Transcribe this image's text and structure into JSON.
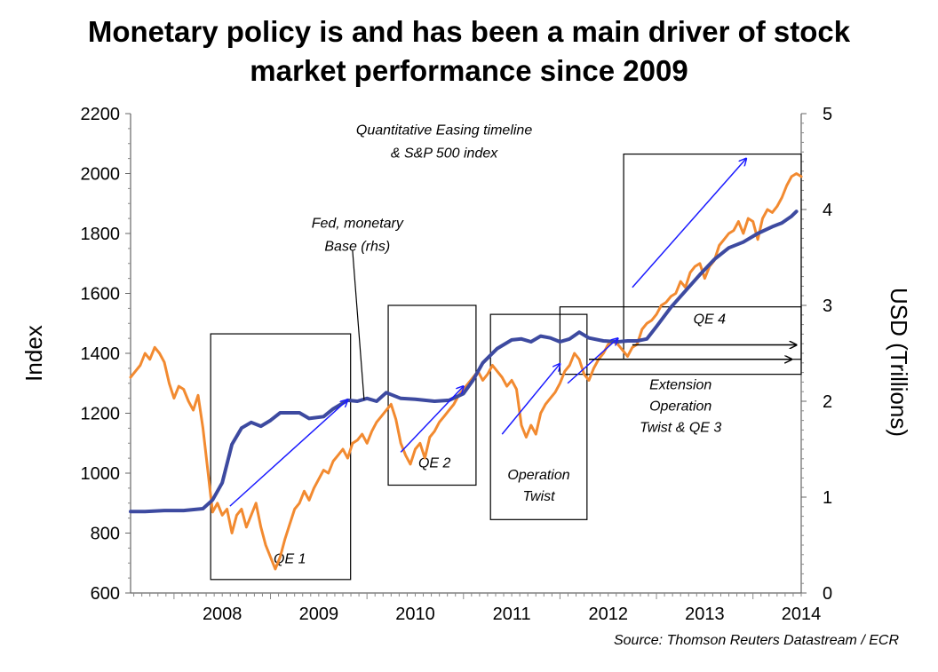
{
  "chart_data": {
    "type": "line",
    "title_lines": [
      "Monetary policy is and has been a main driver of stock",
      "market  performance since 2009"
    ],
    "source": "Source: Thomson Reuters Datastream / ECR",
    "ylabel": "Index",
    "y2label": "USD (Trillions)",
    "ylim": [
      600,
      2200
    ],
    "y2lim": [
      0,
      5
    ],
    "xlim": [
      2007.55,
      2014.5
    ],
    "yticks": [
      "600",
      "800",
      "1000",
      "1200",
      "1400",
      "1600",
      "1800",
      "2000",
      "2200"
    ],
    "y2ticks": [
      "0",
      "1",
      "2",
      "3",
      "4",
      "5"
    ],
    "xticks": [
      {
        "label": "2008",
        "x": 2008.0
      },
      {
        "label": "2009",
        "x": 2009.0
      },
      {
        "label": "2010",
        "x": 2010.0
      },
      {
        "label": "2011",
        "x": 2011.0
      },
      {
        "label": "2012",
        "x": 2012.0
      },
      {
        "label": "2013",
        "x": 2013.0
      },
      {
        "label": "2014",
        "x": 2014.0
      }
    ],
    "series": [
      {
        "axis": "left",
        "color": "#f28a30",
        "points": [
          [
            2007.55,
            1320
          ],
          [
            2007.6,
            1340
          ],
          [
            2007.65,
            1360
          ],
          [
            2007.7,
            1400
          ],
          [
            2007.75,
            1380
          ],
          [
            2007.8,
            1420
          ],
          [
            2007.85,
            1400
          ],
          [
            2007.9,
            1370
          ],
          [
            2007.95,
            1300
          ],
          [
            2008.0,
            1250
          ],
          [
            2008.05,
            1290
          ],
          [
            2008.1,
            1280
          ],
          [
            2008.15,
            1240
          ],
          [
            2008.2,
            1210
          ],
          [
            2008.25,
            1260
          ],
          [
            2008.3,
            1150
          ],
          [
            2008.35,
            1010
          ],
          [
            2008.4,
            870
          ],
          [
            2008.45,
            900
          ],
          [
            2008.5,
            860
          ],
          [
            2008.55,
            880
          ],
          [
            2008.6,
            800
          ],
          [
            2008.65,
            860
          ],
          [
            2008.7,
            880
          ],
          [
            2008.75,
            820
          ],
          [
            2008.8,
            860
          ],
          [
            2008.85,
            900
          ],
          [
            2008.9,
            820
          ],
          [
            2008.95,
            760
          ],
          [
            2009.0,
            720
          ],
          [
            2009.05,
            680
          ],
          [
            2009.1,
            720
          ],
          [
            2009.15,
            780
          ],
          [
            2009.2,
            830
          ],
          [
            2009.25,
            880
          ],
          [
            2009.3,
            900
          ],
          [
            2009.35,
            940
          ],
          [
            2009.4,
            910
          ],
          [
            2009.45,
            950
          ],
          [
            2009.5,
            980
          ],
          [
            2009.55,
            1010
          ],
          [
            2009.6,
            1000
          ],
          [
            2009.65,
            1040
          ],
          [
            2009.7,
            1060
          ],
          [
            2009.75,
            1080
          ],
          [
            2009.8,
            1050
          ],
          [
            2009.85,
            1100
          ],
          [
            2009.9,
            1110
          ],
          [
            2009.95,
            1130
          ],
          [
            2010.0,
            1100
          ],
          [
            2010.05,
            1140
          ],
          [
            2010.1,
            1170
          ],
          [
            2010.15,
            1190
          ],
          [
            2010.2,
            1210
          ],
          [
            2010.25,
            1230
          ],
          [
            2010.3,
            1180
          ],
          [
            2010.35,
            1100
          ],
          [
            2010.4,
            1060
          ],
          [
            2010.45,
            1030
          ],
          [
            2010.5,
            1080
          ],
          [
            2010.55,
            1100
          ],
          [
            2010.6,
            1050
          ],
          [
            2010.65,
            1120
          ],
          [
            2010.7,
            1140
          ],
          [
            2010.75,
            1170
          ],
          [
            2010.8,
            1190
          ],
          [
            2010.85,
            1210
          ],
          [
            2010.9,
            1230
          ],
          [
            2010.95,
            1260
          ],
          [
            2011.0,
            1280
          ],
          [
            2011.05,
            1300
          ],
          [
            2011.1,
            1320
          ],
          [
            2011.15,
            1340
          ],
          [
            2011.2,
            1310
          ],
          [
            2011.25,
            1330
          ],
          [
            2011.3,
            1360
          ],
          [
            2011.35,
            1340
          ],
          [
            2011.4,
            1320
          ],
          [
            2011.45,
            1290
          ],
          [
            2011.5,
            1310
          ],
          [
            2011.55,
            1280
          ],
          [
            2011.6,
            1160
          ],
          [
            2011.65,
            1120
          ],
          [
            2011.7,
            1160
          ],
          [
            2011.75,
            1130
          ],
          [
            2011.8,
            1200
          ],
          [
            2011.85,
            1230
          ],
          [
            2011.9,
            1250
          ],
          [
            2011.95,
            1270
          ],
          [
            2012.0,
            1300
          ],
          [
            2012.05,
            1340
          ],
          [
            2012.1,
            1360
          ],
          [
            2012.15,
            1400
          ],
          [
            2012.2,
            1380
          ],
          [
            2012.25,
            1330
          ],
          [
            2012.3,
            1310
          ],
          [
            2012.35,
            1350
          ],
          [
            2012.4,
            1380
          ],
          [
            2012.45,
            1400
          ],
          [
            2012.5,
            1430
          ],
          [
            2012.55,
            1440
          ],
          [
            2012.6,
            1430
          ],
          [
            2012.65,
            1410
          ],
          [
            2012.7,
            1390
          ],
          [
            2012.75,
            1420
          ],
          [
            2012.8,
            1430
          ],
          [
            2012.85,
            1480
          ],
          [
            2012.9,
            1500
          ],
          [
            2012.95,
            1510
          ],
          [
            2013.0,
            1530
          ],
          [
            2013.05,
            1560
          ],
          [
            2013.1,
            1570
          ],
          [
            2013.15,
            1590
          ],
          [
            2013.2,
            1600
          ],
          [
            2013.25,
            1640
          ],
          [
            2013.3,
            1620
          ],
          [
            2013.35,
            1670
          ],
          [
            2013.4,
            1690
          ],
          [
            2013.45,
            1700
          ],
          [
            2013.5,
            1650
          ],
          [
            2013.55,
            1690
          ],
          [
            2013.6,
            1710
          ],
          [
            2013.65,
            1760
          ],
          [
            2013.7,
            1780
          ],
          [
            2013.75,
            1800
          ],
          [
            2013.8,
            1810
          ],
          [
            2013.85,
            1840
          ],
          [
            2013.9,
            1800
          ],
          [
            2013.95,
            1850
          ],
          [
            2014.0,
            1840
          ],
          [
            2014.05,
            1780
          ],
          [
            2014.1,
            1850
          ],
          [
            2014.15,
            1880
          ],
          [
            2014.2,
            1870
          ],
          [
            2014.25,
            1890
          ],
          [
            2014.3,
            1920
          ],
          [
            2014.35,
            1960
          ],
          [
            2014.4,
            1990
          ],
          [
            2014.45,
            2000
          ],
          [
            2014.5,
            1990
          ]
        ]
      },
      {
        "axis": "right",
        "color": "#3d4aa0",
        "points": [
          [
            2007.55,
            0.85
          ],
          [
            2007.7,
            0.85
          ],
          [
            2007.9,
            0.86
          ],
          [
            2008.1,
            0.86
          ],
          [
            2008.3,
            0.88
          ],
          [
            2008.4,
            0.97
          ],
          [
            2008.5,
            1.15
          ],
          [
            2008.6,
            1.55
          ],
          [
            2008.7,
            1.72
          ],
          [
            2008.8,
            1.78
          ],
          [
            2008.9,
            1.74
          ],
          [
            2009.0,
            1.8
          ],
          [
            2009.1,
            1.88
          ],
          [
            2009.2,
            1.88
          ],
          [
            2009.3,
            1.88
          ],
          [
            2009.4,
            1.82
          ],
          [
            2009.55,
            1.84
          ],
          [
            2009.65,
            1.92
          ],
          [
            2009.8,
            2.01
          ],
          [
            2009.9,
            2.0
          ],
          [
            2010.0,
            2.03
          ],
          [
            2010.1,
            2.0
          ],
          [
            2010.2,
            2.09
          ],
          [
            2010.35,
            2.03
          ],
          [
            2010.5,
            2.02
          ],
          [
            2010.7,
            2.0
          ],
          [
            2010.85,
            2.01
          ],
          [
            2011.0,
            2.08
          ],
          [
            2011.1,
            2.22
          ],
          [
            2011.2,
            2.4
          ],
          [
            2011.35,
            2.55
          ],
          [
            2011.5,
            2.64
          ],
          [
            2011.6,
            2.65
          ],
          [
            2011.7,
            2.62
          ],
          [
            2011.8,
            2.68
          ],
          [
            2011.9,
            2.66
          ],
          [
            2012.0,
            2.62
          ],
          [
            2012.1,
            2.65
          ],
          [
            2012.2,
            2.72
          ],
          [
            2012.3,
            2.66
          ],
          [
            2012.45,
            2.63
          ],
          [
            2012.6,
            2.62
          ],
          [
            2012.7,
            2.63
          ],
          [
            2012.8,
            2.63
          ],
          [
            2012.9,
            2.65
          ],
          [
            2013.0,
            2.78
          ],
          [
            2013.15,
            2.98
          ],
          [
            2013.3,
            3.15
          ],
          [
            2013.45,
            3.32
          ],
          [
            2013.6,
            3.48
          ],
          [
            2013.75,
            3.6
          ],
          [
            2013.9,
            3.66
          ],
          [
            2014.05,
            3.75
          ],
          [
            2014.2,
            3.82
          ],
          [
            2014.3,
            3.86
          ],
          [
            2014.4,
            3.93
          ],
          [
            2014.45,
            3.98
          ]
        ]
      }
    ],
    "boxes": [
      {
        "label_lines": [
          "QE 1"
        ],
        "x0": 2008.38,
        "x1": 2009.83,
        "y0": 645,
        "y1": 1465,
        "label_x": 2009.2,
        "label_y": 700
      },
      {
        "label_lines": [
          "QE 2"
        ],
        "x0": 2010.22,
        "x1": 2011.13,
        "y0": 960,
        "y1": 1560,
        "label_x": 2010.7,
        "label_y": 1020
      },
      {
        "label_lines": [
          "Operation",
          "Twist"
        ],
        "x0": 2011.28,
        "x1": 2012.28,
        "y0": 845,
        "y1": 1530,
        "label_x": 2011.78,
        "label_y": 980
      },
      {
        "label_lines": [
          "Extension",
          "Operation",
          "Twist & QE 3"
        ],
        "x0": 2012.0,
        "x1": 2014.5,
        "y0": 1330,
        "y1": 1555,
        "label_x": 2013.25,
        "label_y": 1280
      },
      {
        "label_lines": [
          "QE 4"
        ],
        "x0": 2012.66,
        "x1": 2014.5,
        "y0": 1380,
        "y1": 2065,
        "label_x": 2013.55,
        "label_y": 1500
      }
    ],
    "arrows": [
      {
        "x0": 2008.58,
        "y0": 890,
        "x1": 2009.8,
        "y1": 1245,
        "color": "#1a1aff"
      },
      {
        "x0": 2010.35,
        "y0": 1070,
        "x1": 2011.0,
        "y1": 1290,
        "color": "#1a1aff"
      },
      {
        "x0": 2011.4,
        "y0": 1130,
        "x1": 2012.0,
        "y1": 1365,
        "color": "#1a1aff"
      },
      {
        "x0": 2012.08,
        "y0": 1300,
        "x1": 2012.6,
        "y1": 1450,
        "color": "#1a1aff"
      },
      {
        "x0": 2012.75,
        "y0": 1620,
        "x1": 2013.93,
        "y1": 2050,
        "color": "#1a1aff"
      },
      {
        "x0": 2012.75,
        "y0": 1428,
        "x1": 2014.45,
        "y1": 1428,
        "color": "#000000"
      },
      {
        "x0": 2012.3,
        "y0": 1380,
        "x1": 2014.4,
        "y1": 1380,
        "color": "#000000"
      }
    ],
    "annotations": [
      {
        "lines": [
          "Quantitative Easing timeline",
          "& S&P 500 index"
        ],
        "x": 2010.8,
        "y": 2130
      },
      {
        "lines": [
          "Fed, monetary",
          "Base (rhs)"
        ],
        "x": 2009.9,
        "y": 1820
      }
    ],
    "leader": {
      "x0": 2009.85,
      "y0": 1745,
      "x1": 2009.97,
      "y1": 1245
    }
  }
}
